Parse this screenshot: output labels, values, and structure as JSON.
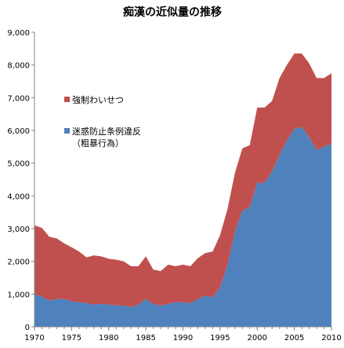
{
  "chart_data": {
    "type": "area",
    "stacked": true,
    "title": "痴漢の近似量の推移",
    "xlabel": "",
    "ylabel": "",
    "x": [
      1970,
      1971,
      1972,
      1973,
      1974,
      1975,
      1976,
      1977,
      1978,
      1979,
      1980,
      1981,
      1982,
      1983,
      1984,
      1985,
      1986,
      1987,
      1988,
      1989,
      1990,
      1991,
      1992,
      1993,
      1994,
      1995,
      1996,
      1997,
      1998,
      1999,
      2000,
      2001,
      2002,
      2003,
      2004,
      2005,
      2006,
      2007,
      2008,
      2009,
      2010
    ],
    "xlim": [
      1970,
      2010
    ],
    "x_ticks": [
      "1970",
      "1975",
      "1980",
      "1985",
      "1990",
      "1995",
      "2000",
      "2005",
      "2010"
    ],
    "ylim": [
      0,
      9000
    ],
    "y_ticks": [
      "0",
      "1,000",
      "2,000",
      "3,000",
      "4,000",
      "5,000",
      "6,000",
      "7,000",
      "8,000",
      "9,000"
    ],
    "grid": false,
    "legend_position": "left",
    "series": [
      {
        "name": "迷惑防止条例違反\n（粗暴行為）",
        "color": "#4f81bd",
        "values": [
          1000,
          920,
          800,
          850,
          850,
          780,
          750,
          720,
          680,
          700,
          680,
          650,
          650,
          600,
          680,
          850,
          700,
          650,
          700,
          750,
          750,
          720,
          850,
          950,
          900,
          1200,
          1900,
          2900,
          3550,
          3650,
          4400,
          4400,
          4750,
          5250,
          5700,
          6050,
          6100,
          5800,
          5400,
          5500,
          5600
        ]
      },
      {
        "name": "強制わいせつ",
        "color": "#c0504d",
        "values": [
          2100,
          2100,
          1950,
          1850,
          1700,
          1650,
          1550,
          1400,
          1500,
          1450,
          1400,
          1400,
          1350,
          1250,
          1170,
          1300,
          1050,
          1050,
          1200,
          1100,
          1150,
          1130,
          1250,
          1300,
          1400,
          1600,
          1700,
          1800,
          1900,
          1900,
          2300,
          2300,
          2150,
          2350,
          2300,
          2300,
          2250,
          2250,
          2200,
          2100,
          2150
        ]
      }
    ],
    "legend_order": [
      1,
      0
    ]
  }
}
